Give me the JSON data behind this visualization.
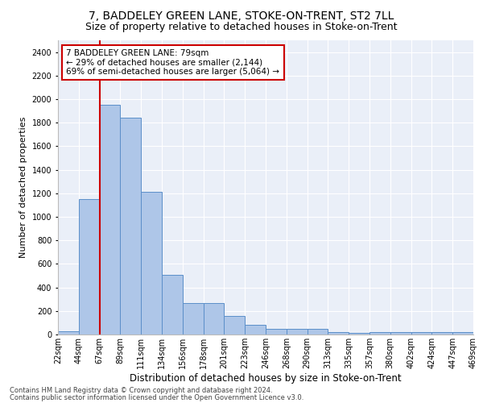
{
  "title": "7, BADDELEY GREEN LANE, STOKE-ON-TRENT, ST2 7LL",
  "subtitle": "Size of property relative to detached houses in Stoke-on-Trent",
  "xlabel": "Distribution of detached houses by size in Stoke-on-Trent",
  "ylabel": "Number of detached properties",
  "bar_values": [
    30,
    1150,
    1950,
    1840,
    1210,
    510,
    265,
    265,
    155,
    80,
    50,
    45,
    45,
    20,
    15,
    20,
    20,
    20,
    20,
    20
  ],
  "categories": [
    "22sqm",
    "44sqm",
    "67sqm",
    "89sqm",
    "111sqm",
    "134sqm",
    "156sqm",
    "178sqm",
    "201sqm",
    "223sqm",
    "246sqm",
    "268sqm",
    "290sqm",
    "313sqm",
    "335sqm",
    "357sqm",
    "380sqm",
    "402sqm",
    "424sqm",
    "447sqm",
    "469sqm"
  ],
  "bar_color": "#aec6e8",
  "bar_edge_color": "#5b8fc9",
  "vline_color": "#cc0000",
  "annotation_text": "7 BADDELEY GREEN LANE: 79sqm\n← 29% of detached houses are smaller (2,144)\n69% of semi-detached houses are larger (5,064) →",
  "annotation_box_color": "#ffffff",
  "annotation_box_edge_color": "#cc0000",
  "ylim": [
    0,
    2500
  ],
  "yticks": [
    0,
    200,
    400,
    600,
    800,
    1000,
    1200,
    1400,
    1600,
    1800,
    2000,
    2200,
    2400
  ],
  "footer1": "Contains HM Land Registry data © Crown copyright and database right 2024.",
  "footer2": "Contains public sector information licensed under the Open Government Licence v3.0.",
  "bg_color": "#eaeff8",
  "fig_bg_color": "#ffffff",
  "title_fontsize": 10,
  "subtitle_fontsize": 9,
  "xlabel_fontsize": 8.5,
  "ylabel_fontsize": 8,
  "tick_fontsize": 7,
  "footer_fontsize": 6
}
